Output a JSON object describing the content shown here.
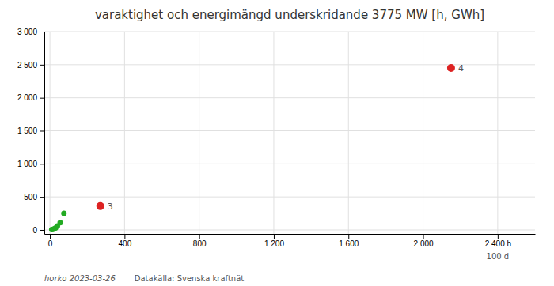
{
  "chart_data": {
    "type": "scatter",
    "title": "varaktighet  och energimängd underskridande 3775 MW [h, GWh]",
    "series": [
      {
        "x": [
          10,
          15,
          22,
          30,
          40,
          55,
          75
        ],
        "values": [
          5,
          8,
          15,
          30,
          60,
          110,
          250
        ],
        "color": "#22aa22"
      },
      {
        "x": [
          270,
          2150
        ],
        "values": [
          360,
          2450
        ],
        "color": "#dd2222"
      }
    ],
    "annotations": [
      {
        "text": "3",
        "x": 270,
        "y": 360
      },
      {
        "text": "4",
        "x": 2150,
        "y": 2450
      },
      {
        "text": "100 d",
        "x": 2400
      }
    ],
    "xlim": [
      -30,
      2600
    ],
    "ylim": [
      -60,
      3000
    ],
    "xticks": [
      0,
      400,
      800,
      {
        "value": 1200,
        "label": "1 200"
      },
      {
        "value": 1600,
        "label": "1 600"
      },
      {
        "value": 2000,
        "label": "2 000"
      },
      {
        "value": 2400,
        "label": "2 400 h"
      }
    ],
    "yticks": [
      0,
      500,
      {
        "value": 1000,
        "label": "1 000"
      },
      {
        "value": 1500,
        "label": "1 500"
      },
      {
        "value": 2000,
        "label": "2 000"
      },
      {
        "value": 2500,
        "label": "2 500"
      },
      {
        "value": 3000,
        "label": "3 000"
      }
    ],
    "grid": true,
    "caption": "horko 2023-03-26",
    "source": "Datakälla: Svenska kraftnät"
  }
}
